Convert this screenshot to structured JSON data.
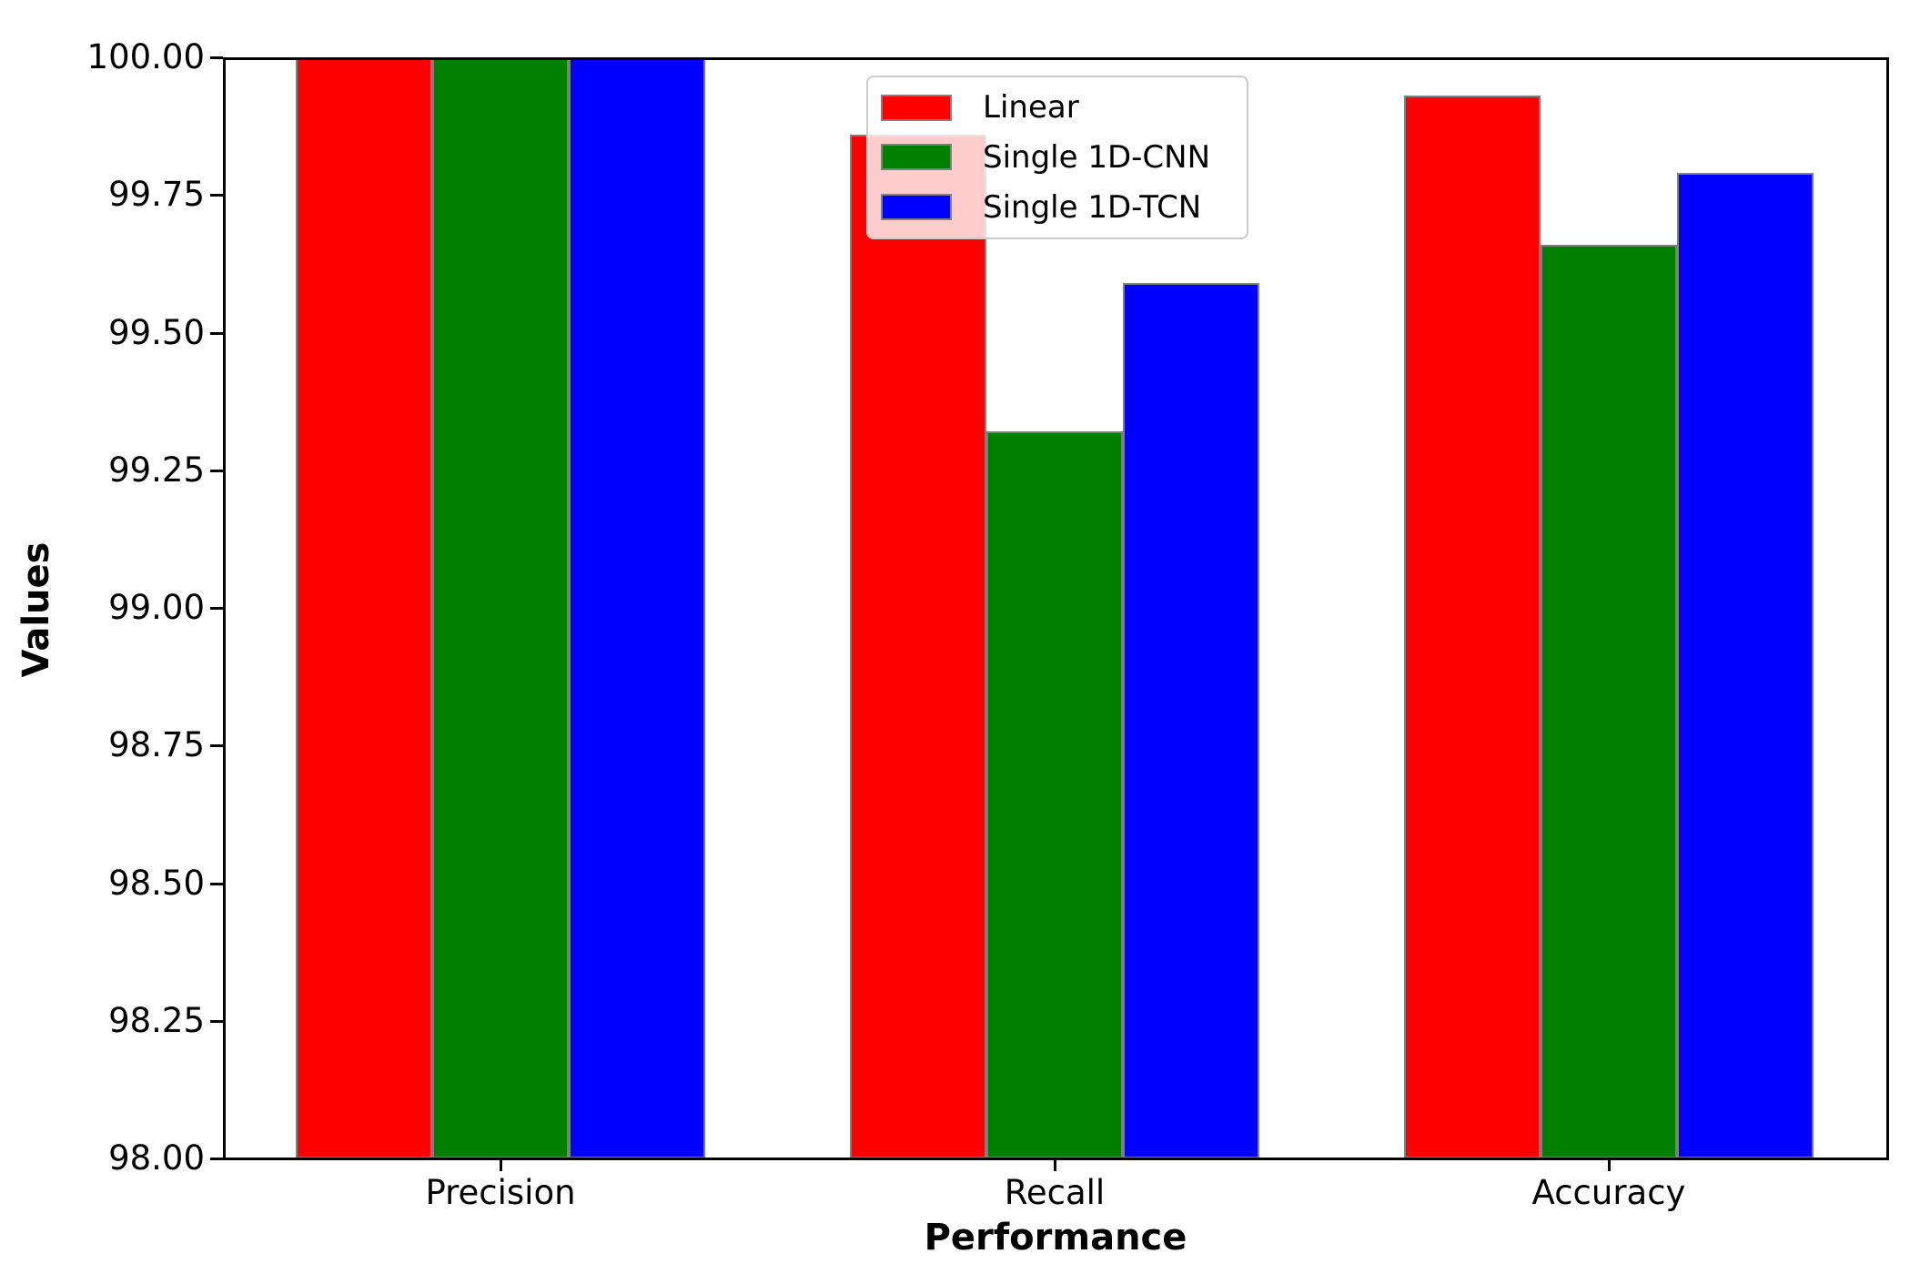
{
  "figure": {
    "title": "",
    "ylabel": "Values",
    "xlabel": "Performance"
  },
  "chart_data": {
    "type": "bar",
    "categories": [
      "Precision",
      "Recall",
      "Accuracy"
    ],
    "series": [
      {
        "name": "Linear",
        "color": "#ff0000",
        "values": [
          100.0,
          99.86,
          99.93
        ]
      },
      {
        "name": "Single 1D-CNN",
        "color": "#008000",
        "values": [
          100.0,
          99.32,
          99.66
        ]
      },
      {
        "name": "Single 1D-TCN",
        "color": "#0000ff",
        "values": [
          100.0,
          99.59,
          99.79
        ]
      }
    ],
    "title": "",
    "xlabel": "Performance",
    "ylabel": "Values",
    "ylim": [
      98.0,
      100.0
    ],
    "ytick_step": 0.25,
    "ytick_labels": [
      "98.00",
      "98.25",
      "98.50",
      "98.75",
      "99.00",
      "99.25",
      "99.50",
      "99.75",
      "100.00"
    ],
    "legend": {
      "position": "upper center",
      "entries": [
        "Linear",
        "Single 1D-CNN",
        "Single 1D-TCN"
      ]
    },
    "bar_edge_color": "#7f7f7f",
    "grid": false
  }
}
